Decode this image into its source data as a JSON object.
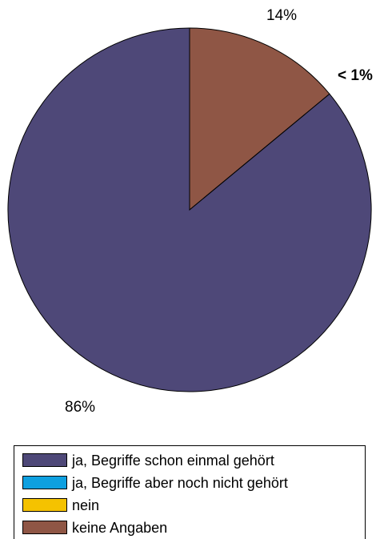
{
  "chart_data": {
    "type": "pie",
    "slices": [
      {
        "label": "ja, Begriffe schon einmal gehört",
        "value": 86,
        "value_label": "86%",
        "color": "#4e4878"
      },
      {
        "label": "ja, Begriffe aber noch nicht gehört",
        "value": 0,
        "value_label": "",
        "color": "#0ea0e0"
      },
      {
        "label": "nein",
        "value": 0,
        "value_label": "",
        "color": "#f5c200"
      },
      {
        "label": "keine Angaben",
        "value": 14,
        "value_label": "14%",
        "color": "#8f5645"
      }
    ],
    "annotation": "< 1%",
    "legend_position": "bottom"
  }
}
